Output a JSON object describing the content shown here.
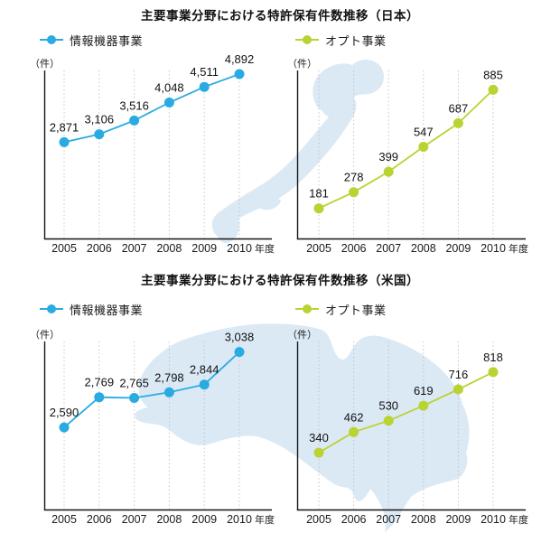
{
  "colors": {
    "info_business": "#29abe2",
    "opto_business": "#b9d333",
    "map": "#dbe9f5",
    "axis": "#141414",
    "grid": "#bdbdbd"
  },
  "sections": [
    {
      "title": "主要事業分野における特許保有件数推移（日本）",
      "map": "japan",
      "legends": [
        {
          "label": "情報機器事業",
          "color": "#29abe2"
        },
        {
          "label": "オプト事業",
          "color": "#b9d333"
        }
      ],
      "charts": [
        0,
        1
      ]
    },
    {
      "title": "主要事業分野における特許保有件数推移（米国）",
      "map": "north_america",
      "legends": [
        {
          "label": "情報機器事業",
          "color": "#29abe2"
        },
        {
          "label": "オプト事業",
          "color": "#b9d333"
        }
      ],
      "charts": [
        2,
        3
      ]
    }
  ],
  "chart_data": [
    {
      "type": "line",
      "name": "japan-info-equipment",
      "title": "情報機器事業（日本）",
      "series_label": "情報機器事業",
      "categories": [
        "2005",
        "2006",
        "2007",
        "2008",
        "2009",
        "2010"
      ],
      "values": [
        2871,
        3106,
        3516,
        4048,
        4511,
        4892
      ],
      "value_labels": [
        "2,871",
        "3,106",
        "3,516",
        "4,048",
        "4,511",
        "4,892"
      ],
      "color": "#29abe2",
      "ylim": [
        0,
        5000
      ],
      "ylabel": "（件）",
      "x_suffix": "年度",
      "grid": "vertical-dotted",
      "legend_position": "above"
    },
    {
      "type": "line",
      "name": "japan-opto",
      "title": "オプト事業（日本）",
      "series_label": "オプト事業",
      "categories": [
        "2005",
        "2006",
        "2007",
        "2008",
        "2009",
        "2010"
      ],
      "values": [
        181,
        278,
        399,
        547,
        687,
        885
      ],
      "value_labels": [
        "181",
        "278",
        "399",
        "547",
        "687",
        "885"
      ],
      "color": "#b9d333",
      "ylim": [
        0,
        1000
      ],
      "ylabel": "（件）",
      "x_suffix": "年度",
      "grid": "vertical-dotted",
      "legend_position": "above"
    },
    {
      "type": "line",
      "name": "us-info-equipment",
      "title": "情報機器事業（米国）",
      "series_label": "情報機器事業",
      "categories": [
        "2005",
        "2006",
        "2007",
        "2008",
        "2009",
        "2010"
      ],
      "values": [
        2590,
        2769,
        2765,
        2798,
        2844,
        3038
      ],
      "value_labels": [
        "2,590",
        "2,769",
        "2,765",
        "2,798",
        "2,844",
        "3,038"
      ],
      "color": "#29abe2",
      "ylim": [
        2100,
        3100
      ],
      "ylabel": "（件）",
      "x_suffix": "年度",
      "grid": "vertical-dotted",
      "legend_position": "above"
    },
    {
      "type": "line",
      "name": "us-opto",
      "title": "オプト事業（米国）",
      "series_label": "オプト事業",
      "categories": [
        "2005",
        "2006",
        "2007",
        "2008",
        "2009",
        "2010"
      ],
      "values": [
        340,
        462,
        530,
        619,
        716,
        818
      ],
      "value_labels": [
        "340",
        "462",
        "530",
        "619",
        "716",
        "818"
      ],
      "color": "#b9d333",
      "ylim": [
        0,
        1000
      ],
      "ylabel": "（件）",
      "x_suffix": "年度",
      "grid": "vertical-dotted",
      "legend_position": "above"
    }
  ]
}
